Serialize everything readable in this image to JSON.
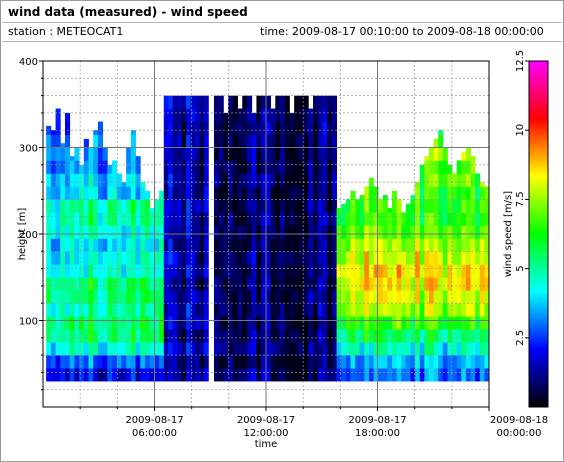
{
  "header": {
    "title": "wind data (measured) - wind speed",
    "station": "station : METEOCAT1",
    "time_range": "time: 2009-08-17 00:10:00 to 2009-08-18 00:00:00"
  },
  "chart_data": {
    "type": "heatmap",
    "title": "wind data (measured) - wind speed",
    "xlabel": "time",
    "ylabel": "height [m]",
    "colorbar_label": "wind speed [m/s]",
    "x_ticks": [
      {
        "hours": 6,
        "line1": "2009-08-17",
        "line2": "06:00:00"
      },
      {
        "hours": 12,
        "line1": "2009-08-17",
        "line2": "12:00:00"
      },
      {
        "hours": 18,
        "line1": "2009-08-17",
        "line2": "18:00:00"
      },
      {
        "hours": 24,
        "line1": "2009-08-18",
        "line2": "00:00:00"
      }
    ],
    "x_range_hours": [
      0,
      24
    ],
    "y_ticks": [
      100,
      200,
      300,
      400
    ],
    "ylim": [
      0,
      400
    ],
    "colorbar_ticks": [
      "2.5",
      "5",
      "7.5",
      "10",
      "12.5"
    ],
    "colorbar_range": [
      0,
      12.5
    ],
    "grid": true,
    "colormap": [
      "#000000",
      "#00007f",
      "#0000ff",
      "#0080ff",
      "#00ffff",
      "#00ff80",
      "#00ff00",
      "#80ff00",
      "#ffff00",
      "#ff8000",
      "#ff0000",
      "#ff0080",
      "#ff00ff"
    ],
    "height_bin_m": 15,
    "height_start_m": 30,
    "time_bin_hours": 0.25,
    "profiles": [
      {
        "from_hour": 0.17,
        "to_hour": 6.5,
        "top_m": [
          325,
          320,
          345,
          305,
          340,
          290,
          300,
          280,
          310,
          300,
          320,
          330,
          300,
          280,
          285,
          270,
          260,
          300,
          320,
          290,
          260,
          250,
          230,
          240,
          250,
          220
        ],
        "speed_profile_ms": [
          2.0,
          3.0,
          4.5,
          5.5,
          5.5,
          5.0,
          5.5,
          5.5,
          4.5,
          4.5,
          4.0,
          4.5,
          5.0,
          5.0,
          4.0,
          4.0,
          3.5,
          3.5,
          3.5,
          3.0,
          3.0
        ]
      },
      {
        "from_hour": 6.5,
        "to_hour": 8.9,
        "top_m": [
          360,
          360,
          360,
          360,
          360,
          360,
          360,
          360,
          360,
          360
        ],
        "speed_profile_ms": [
          1.5,
          1.2,
          1.5,
          1.2,
          1.4,
          1.5,
          1.3,
          1.2,
          1.4,
          1.5,
          1.3,
          1.2,
          1.4,
          1.5,
          1.3,
          1.4,
          1.2,
          1.4,
          1.5,
          1.3,
          1.4,
          1.5
        ]
      },
      {
        "from_hour": 9.2,
        "to_hour": 15.8,
        "top_m": [
          360,
          360,
          340,
          360,
          360,
          345,
          360,
          360,
          340,
          360,
          360,
          360,
          345,
          360,
          360,
          360,
          340,
          360,
          360,
          360,
          345,
          360,
          360,
          360,
          360,
          360
        ],
        "speed_profile_ms": [
          0.9,
          0.8,
          1.0,
          0.9,
          0.8,
          1.1,
          0.9,
          0.8,
          0.9,
          1.0,
          0.9,
          0.8,
          1.0,
          0.9,
          0.8,
          1.0,
          0.9,
          0.8,
          0.9,
          1.0,
          0.9,
          0.8
        ]
      },
      {
        "from_hour": 15.8,
        "to_hour": 24.0,
        "top_m": [
          230,
          235,
          240,
          250,
          240,
          245,
          255,
          265,
          255,
          240,
          245,
          230,
          250,
          240,
          225,
          235,
          245,
          260,
          280,
          290,
          300,
          310,
          320,
          300,
          280,
          270,
          285,
          295,
          300,
          290,
          270,
          260,
          255
        ],
        "speed_profile_ms": [
          3.0,
          3.5,
          4.5,
          5.5,
          6.5,
          7.5,
          8.0,
          8.5,
          8.5,
          8.0,
          7.5,
          7.0,
          6.5,
          6.5,
          6.5,
          7.0,
          7.0,
          7.5,
          6.5,
          6.0,
          5.5
        ]
      }
    ]
  }
}
